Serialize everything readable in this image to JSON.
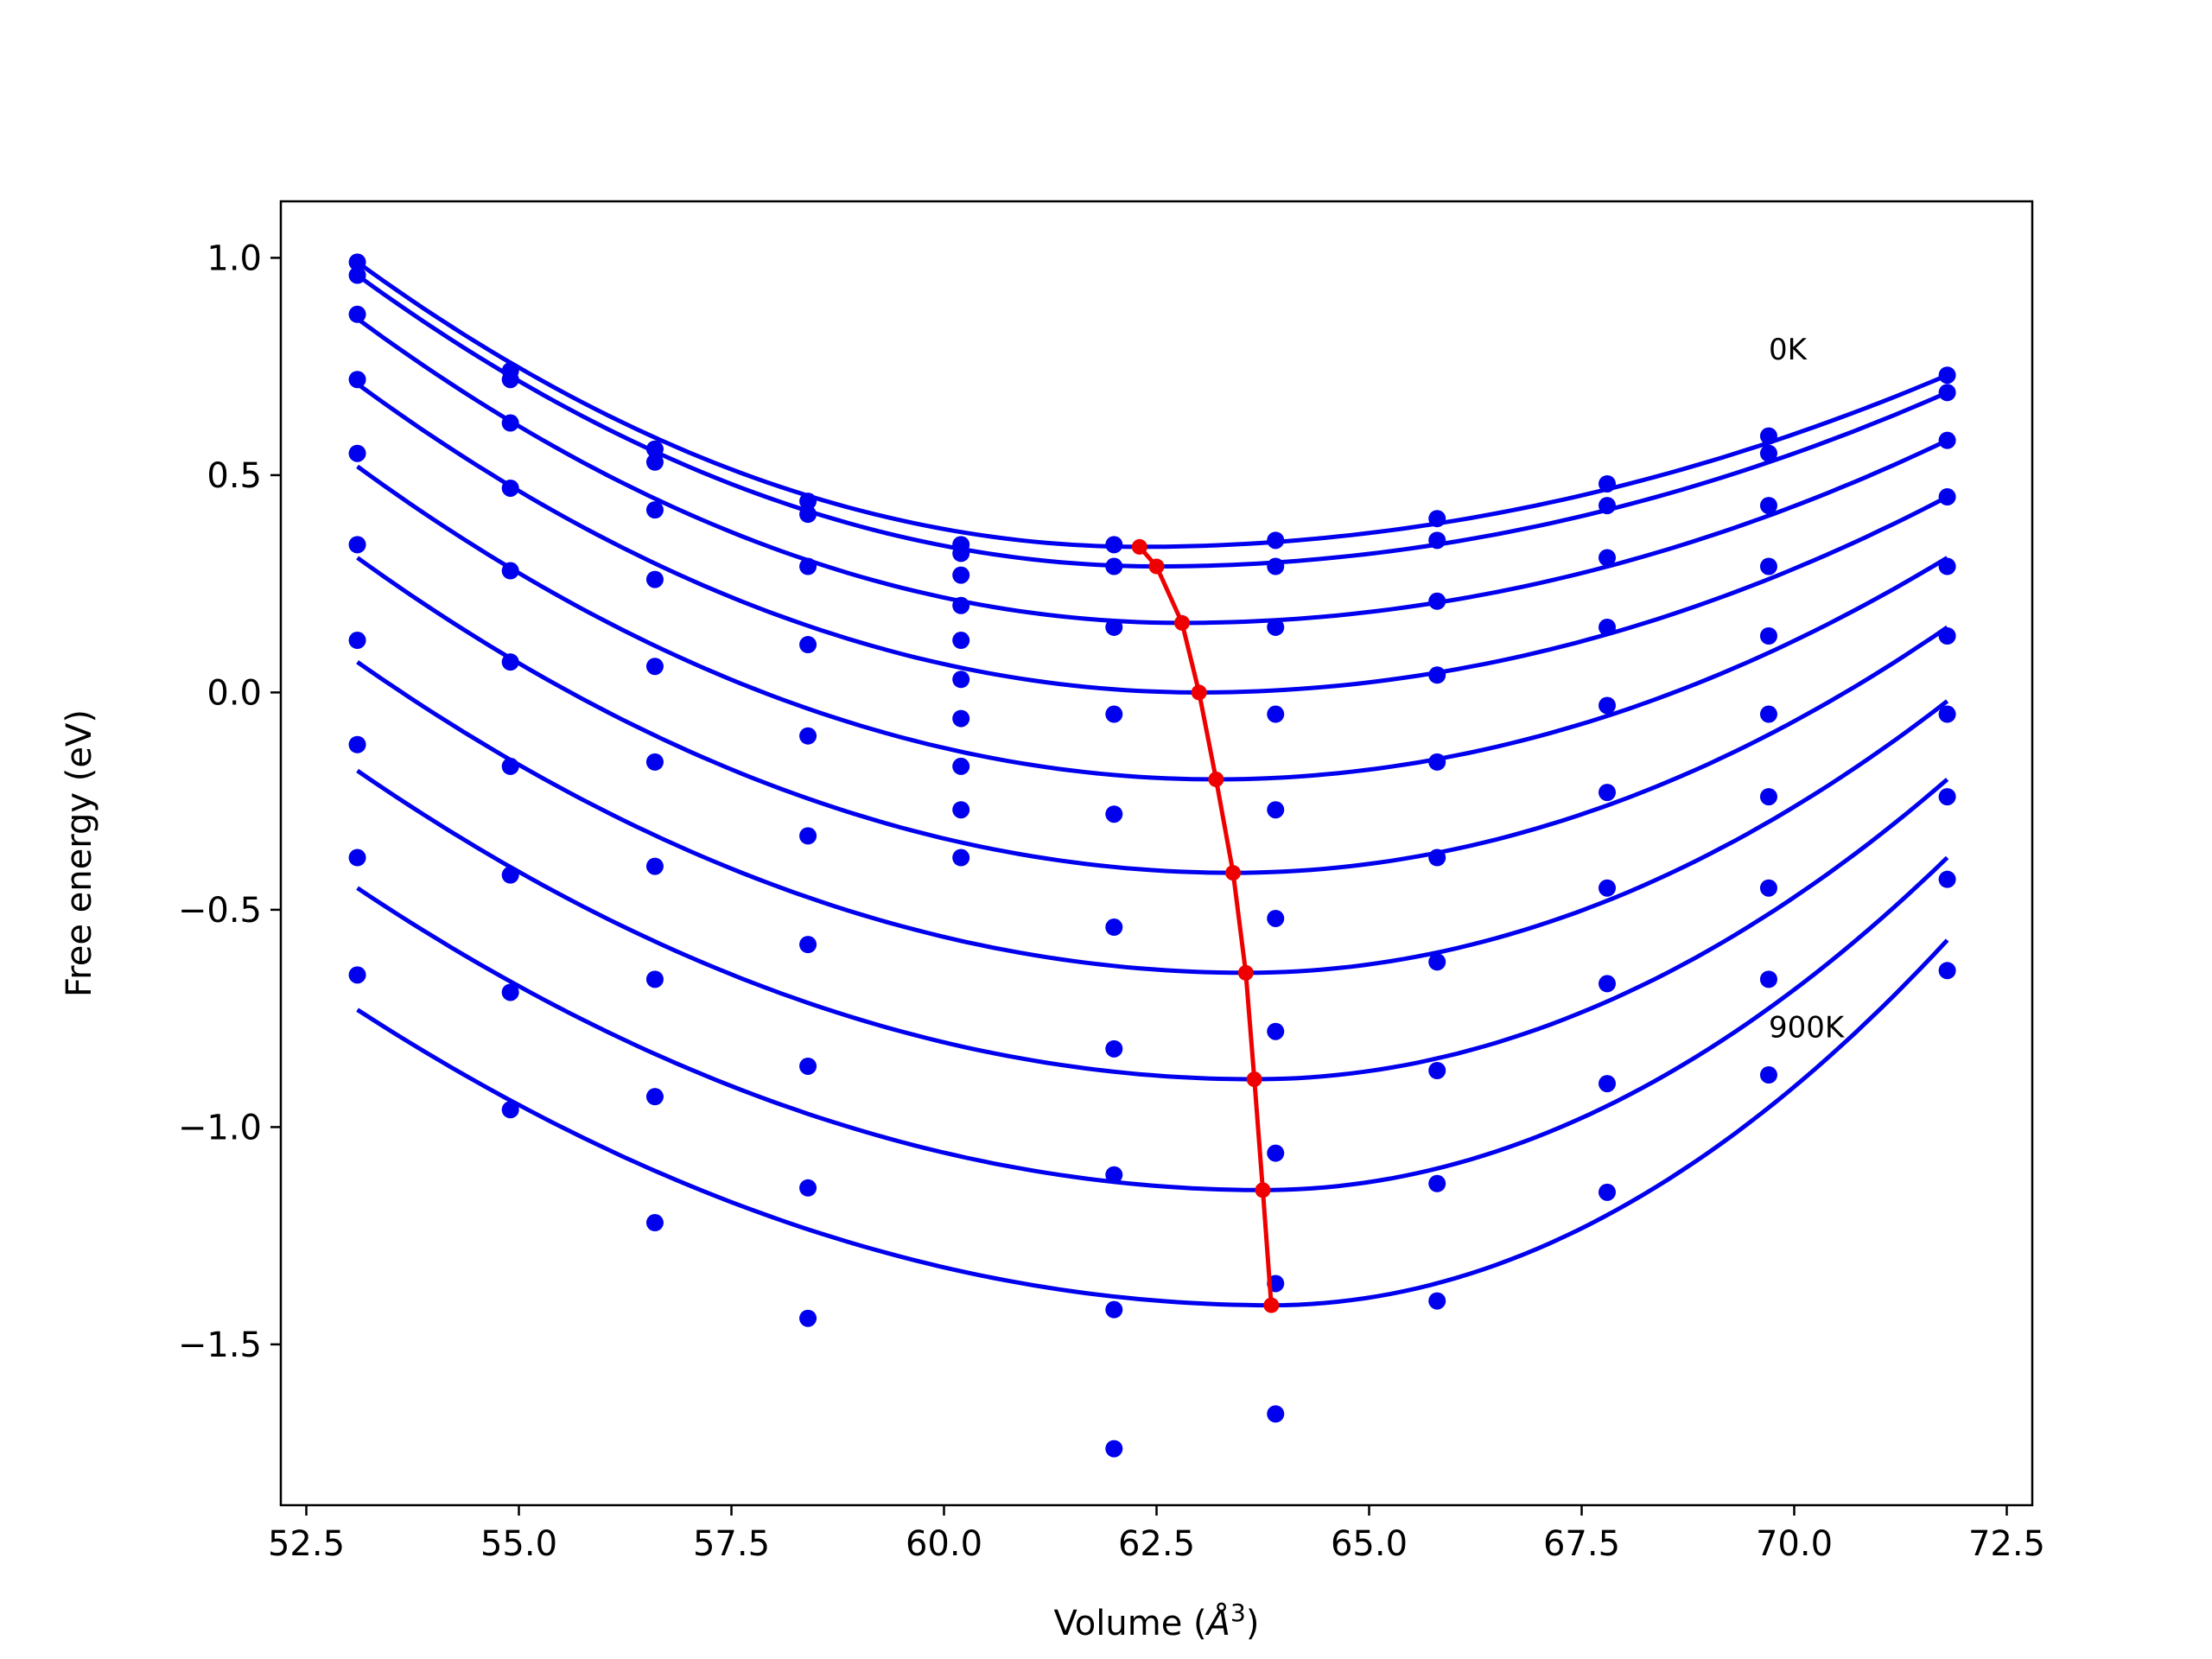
{
  "chart_data": {
    "type": "scatter",
    "title": "",
    "xlabel": "Volume (",
    "xlabel_symbol": "Å",
    "xlabel_sup": "3",
    "xlabel_suffix": ")",
    "ylabel": "Free energy (eV)",
    "xlim": [
      52.2,
      72.8
    ],
    "ylim": [
      -1.87,
      1.13
    ],
    "xticks": [
      52.5,
      55.0,
      57.5,
      60.0,
      62.5,
      65.0,
      67.5,
      70.0,
      72.5
    ],
    "yticks": [
      -1.5,
      -1.0,
      -0.5,
      0.0,
      0.5,
      1.0
    ],
    "xtick_labels": [
      "52.5",
      "55.0",
      "57.5",
      "60.0",
      "62.5",
      "65.0",
      "67.5",
      "70.0",
      "72.5"
    ],
    "ytick_labels": [
      "−1.5",
      "−1.0",
      "−0.5",
      "0.0",
      "0.5",
      "1.0"
    ],
    "grid": false,
    "legend": "none",
    "colors": {
      "points": "#0000ee",
      "fits": "#0000ee",
      "minimum_path": "#ee0000"
    },
    "annotations": [
      {
        "text": "0K",
        "x": 69.7,
        "y": 0.79
      },
      {
        "text": "900K",
        "x": 69.7,
        "y": -0.77
      }
    ],
    "volumes": [
      53.1,
      54.9,
      56.6,
      58.4,
      60.2,
      62.0,
      63.9,
      65.8,
      67.8,
      69.7,
      71.8
    ],
    "series": [
      {
        "energies": [
          0.99,
          0.74,
          0.56,
          0.44,
          0.34,
          0.34,
          0.35,
          0.4,
          0.48,
          0.59,
          0.73
        ],
        "fit": {
          "v0": 62.3,
          "e0": 0.335,
          "v_start": 53.1,
          "e_start": 0.99,
          "v_end": 71.8,
          "e_end": 0.73
        }
      },
      {
        "energies": [
          0.96,
          0.72,
          0.53,
          0.41,
          0.32,
          0.29,
          0.29,
          0.35,
          0.43,
          0.55,
          0.69
        ],
        "fit": {
          "v0": 62.5,
          "e0": 0.29,
          "v_start": 53.1,
          "e_start": 0.96,
          "v_end": 71.8,
          "e_end": 0.69
        }
      },
      {
        "energies": [
          0.87,
          0.62,
          0.42,
          0.29,
          0.27,
          0.15,
          0.15,
          0.21,
          0.31,
          0.43,
          0.58
        ],
        "fit": {
          "v0": 62.8,
          "e0": 0.16,
          "v_start": 53.1,
          "e_start": 0.86,
          "v_end": 71.8,
          "e_end": 0.58
        }
      },
      {
        "energies": [
          0.72,
          0.47,
          0.26,
          0.11,
          0.2,
          -0.05,
          -0.05,
          0.04,
          0.15,
          0.29,
          0.45
        ],
        "fit": {
          "v0": 63.0,
          "e0": 0.0,
          "v_start": 53.1,
          "e_start": 0.71,
          "v_end": 71.8,
          "e_end": 0.45
        }
      },
      {
        "energies": [
          0.55,
          0.28,
          0.06,
          -0.1,
          0.12,
          -0.28,
          -0.27,
          -0.16,
          -0.03,
          0.13,
          0.29
        ],
        "fit": {
          "v0": 63.2,
          "e0": -0.2,
          "v_start": 53.1,
          "e_start": 0.52,
          "v_end": 71.8,
          "e_end": 0.31
        }
      },
      {
        "energies": [
          0.34,
          0.07,
          -0.16,
          -0.33,
          0.03,
          -0.54,
          -0.52,
          -0.38,
          -0.23,
          -0.05,
          0.13
        ],
        "fit": {
          "v0": 63.4,
          "e0": -0.415,
          "v_start": 53.1,
          "e_start": 0.31,
          "v_end": 71.8,
          "e_end": 0.15
        }
      },
      {
        "energies": [
          0.12,
          -0.17,
          -0.4,
          -0.58,
          -0.06,
          -0.82,
          -0.78,
          -0.62,
          -0.45,
          -0.24,
          -0.05
        ],
        "fit": {
          "v0": 63.55,
          "e0": -0.645,
          "v_start": 53.1,
          "e_start": 0.07,
          "v_end": 71.8,
          "e_end": -0.02
        }
      },
      {
        "energies": [
          -0.12,
          -0.42,
          -0.66,
          -0.86,
          -0.17,
          -1.11,
          -1.06,
          -0.87,
          -0.67,
          -0.45,
          -0.24
        ],
        "fit": {
          "v0": 63.65,
          "e0": -0.89,
          "v_start": 53.1,
          "e_start": -0.18,
          "v_end": 71.8,
          "e_end": -0.2
        }
      },
      {
        "energies": [
          -0.38,
          -0.69,
          -0.93,
          -1.14,
          -0.27,
          -1.42,
          -1.36,
          -1.13,
          -0.9,
          -0.66,
          -0.43
        ],
        "fit": {
          "v0": 63.75,
          "e0": -1.145,
          "v_start": 53.1,
          "e_start": -0.45,
          "v_end": 71.8,
          "e_end": -0.38
        }
      },
      {
        "energies": [
          -0.65,
          -0.96,
          -1.22,
          -1.44,
          -0.38,
          -1.74,
          -1.66,
          -1.4,
          -1.15,
          -0.88,
          -0.64
        ],
        "fit": {
          "v0": 63.85,
          "e0": -1.41,
          "v_start": 53.1,
          "e_start": -0.73,
          "v_end": 71.8,
          "e_end": -0.57
        }
      }
    ],
    "minimum_path": {
      "x": [
        62.3,
        62.5,
        62.8,
        63.0,
        63.2,
        63.4,
        63.55,
        63.65,
        63.75,
        63.85
      ],
      "y": [
        0.335,
        0.29,
        0.16,
        0.0,
        -0.2,
        -0.415,
        -0.645,
        -0.89,
        -1.145,
        -1.41
      ]
    }
  }
}
